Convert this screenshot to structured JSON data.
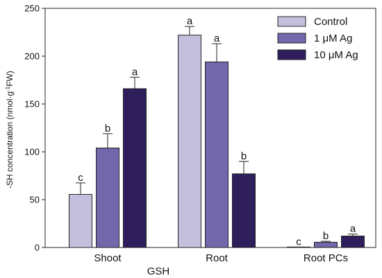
{
  "chart_data": {
    "type": "bar",
    "categories": [
      "Shoot",
      "Root",
      "Root PCs"
    ],
    "series": [
      {
        "name": "Control",
        "color": "#c4bfdd",
        "values": [
          55.5,
          222,
          0.5
        ],
        "errors": [
          12,
          9,
          0
        ],
        "letters": [
          "c",
          "a",
          "c"
        ]
      },
      {
        "name": "1 μM Ag",
        "color": "#7167aa",
        "values": [
          104,
          194,
          5.5
        ],
        "errors": [
          15,
          19,
          1
        ],
        "letters": [
          "b",
          "a",
          "b"
        ]
      },
      {
        "name": "10 μM Ag",
        "color": "#2e1f5c",
        "values": [
          166,
          77,
          12
        ],
        "errors": [
          12,
          13,
          2
        ],
        "letters": [
          "a",
          "b",
          "a"
        ]
      }
    ],
    "ylabel_parts": {
      "pre": "-SH concentration (nmol·g",
      "sup": "-1",
      "post": "FW)"
    },
    "group_label": "GSH",
    "ylim": [
      0,
      250
    ],
    "yticks": [
      0,
      50,
      100,
      150,
      200,
      250
    ],
    "legend_position": "top-right",
    "grid": false
  }
}
